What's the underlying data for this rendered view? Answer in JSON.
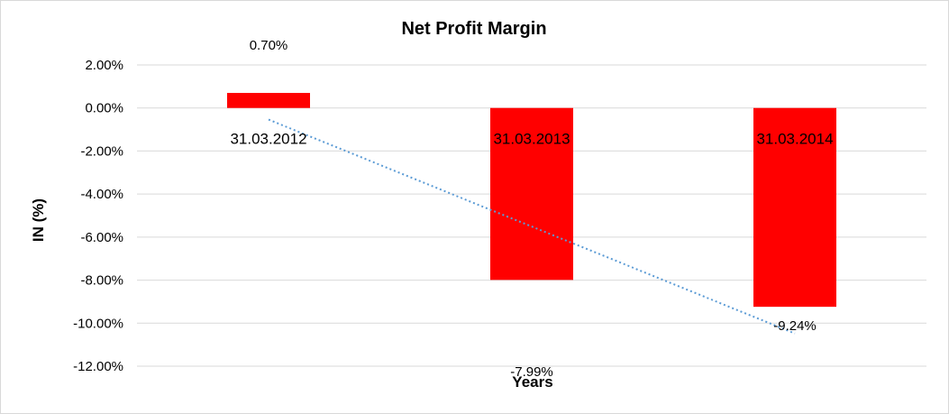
{
  "chart_data": {
    "type": "bar",
    "title": "Net Profit Margin",
    "xlabel": "Years",
    "ylabel": "IN (%)",
    "categories": [
      "31.03.2012",
      "31.03.2013",
      "31.03.2014"
    ],
    "values": [
      0.7,
      -7.99,
      -9.24
    ],
    "data_labels": [
      "0.70%",
      "-7.99%",
      "-9.24%"
    ],
    "yticks": [
      2,
      0,
      -2,
      -4,
      -6,
      -8,
      -10,
      -12
    ],
    "ytick_labels": [
      "2.00%",
      "0.00%",
      "-2.00%",
      "-4.00%",
      "-6.00%",
      "-8.00%",
      "-10.00%",
      "-12.00%"
    ],
    "ylim": [
      -12,
      2
    ],
    "grid": true,
    "trendline": "linear",
    "colors": {
      "bar": "#ff0000",
      "trendline": "#5b9bd5"
    }
  }
}
